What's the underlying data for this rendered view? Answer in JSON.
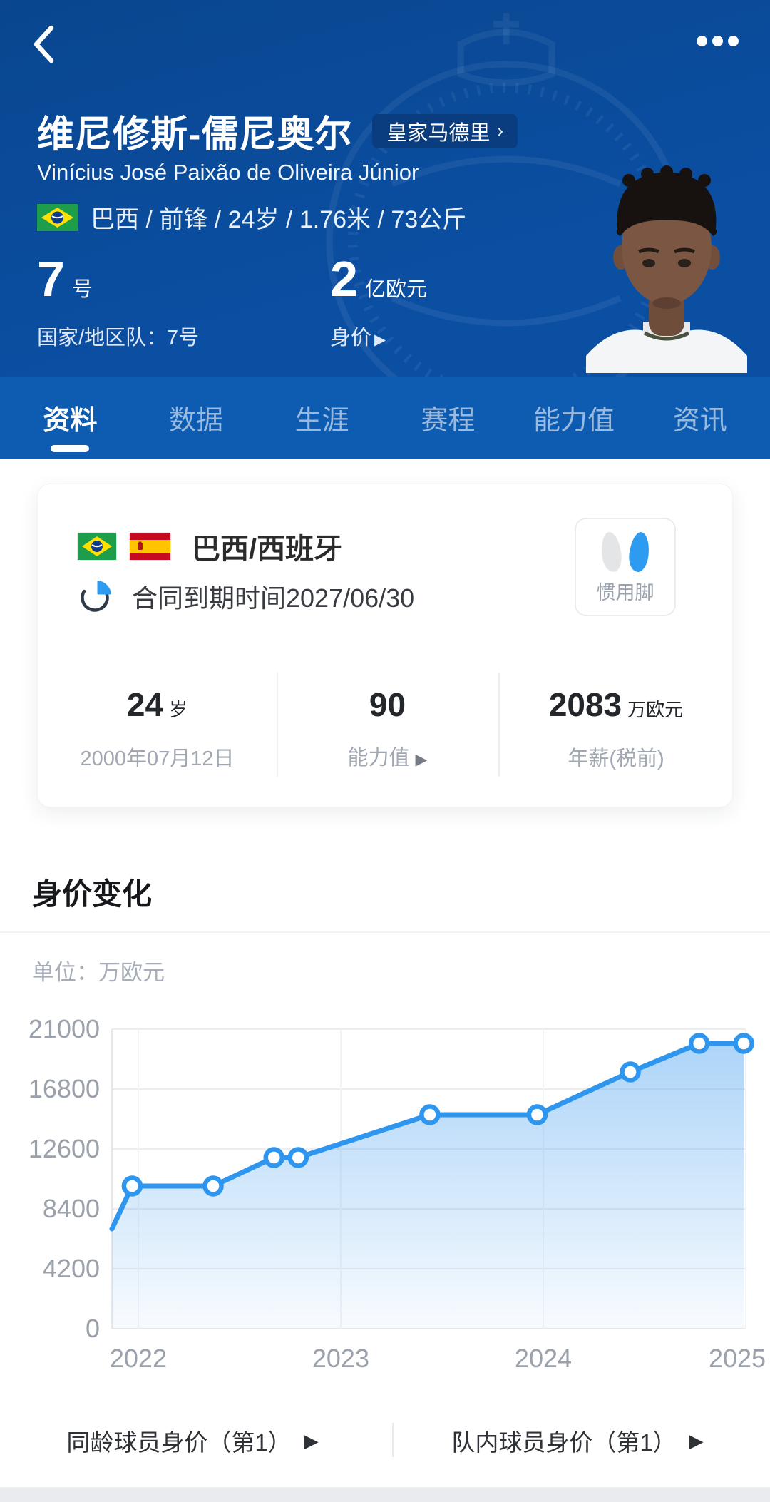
{
  "colors": {
    "header_blue": "#0b4fa3",
    "tabbar_blue": "#0e5cb1",
    "badge_navy": "#0a3d7f",
    "accent_blue": "#2f96ef",
    "text_gray": "#9aa1ab"
  },
  "header": {
    "player_name_cn": "维尼修斯-儒尼奥尔",
    "club_badge_label": "皇家马德里",
    "club_badge_arrow": "›",
    "player_name_full": "Vinícius José Paixão de Oliveira Júnior",
    "info_line": "巴西 / 前锋 / 24岁 / 1.76米 / 73公斤",
    "shirt_number": "7",
    "shirt_number_unit": "号",
    "shirt_number_label": "国家/地区队：7号",
    "market_value": "2",
    "market_value_unit": "亿欧元",
    "market_value_label": "身价",
    "market_value_arrow": "▶"
  },
  "tabs": [
    {
      "label": "资料"
    },
    {
      "label": "数据"
    },
    {
      "label": "生涯"
    },
    {
      "label": "赛程"
    },
    {
      "label": "能力值"
    },
    {
      "label": "资讯"
    }
  ],
  "card": {
    "nationality_label": "巴西/西班牙",
    "contract_label": "合同到期时间2027/06/30",
    "preferred_foot_label": "惯用脚",
    "preferred_foot": "right",
    "stats": [
      {
        "value": "24",
        "unit": "岁",
        "label": "2000年07月12日"
      },
      {
        "value": "90",
        "unit": "",
        "label": "能力值",
        "arrow": "▶"
      },
      {
        "value": "2083",
        "unit": "万欧元",
        "label": "年薪(税前)"
      }
    ]
  },
  "market_section": {
    "title": "身价变化",
    "unit_label": "单位：万欧元"
  },
  "links": [
    {
      "label": "同龄球员身价（第1）",
      "arrow": "▶"
    },
    {
      "label": "队内球员身价（第1）",
      "arrow": "▶"
    }
  ],
  "chart_data": {
    "type": "area",
    "title": "身价变化",
    "ylabel": "万欧元",
    "y_ticks": [
      0,
      4200,
      8400,
      12600,
      16800,
      21000
    ],
    "x_ticks": [
      2022,
      2023,
      2024,
      2025
    ],
    "ylim": [
      0,
      21000
    ],
    "xlim": [
      2021.87,
      2025.0
    ],
    "grid": true,
    "legend_position": "none",
    "line_color": "#2f96ef",
    "points": [
      {
        "x": 2021.87,
        "value": 7000,
        "marker": false
      },
      {
        "x": 2021.97,
        "value": 10000,
        "marker": true
      },
      {
        "x": 2022.37,
        "value": 10000,
        "marker": true
      },
      {
        "x": 2022.67,
        "value": 12000,
        "marker": true
      },
      {
        "x": 2022.79,
        "value": 12000,
        "marker": true
      },
      {
        "x": 2023.44,
        "value": 15000,
        "marker": true
      },
      {
        "x": 2023.97,
        "value": 15000,
        "marker": true
      },
      {
        "x": 2024.43,
        "value": 18000,
        "marker": true
      },
      {
        "x": 2024.77,
        "value": 20000,
        "marker": true
      },
      {
        "x": 2024.99,
        "value": 20000,
        "marker": true
      }
    ]
  }
}
